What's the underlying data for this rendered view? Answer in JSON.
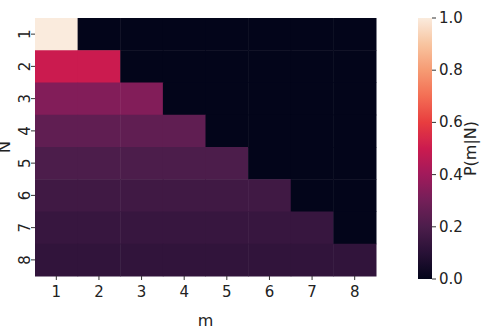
{
  "chart_data": {
    "type": "heatmap",
    "x_label": "m",
    "y_label": "N",
    "x_categories": [
      1,
      2,
      3,
      4,
      5,
      6,
      7,
      8
    ],
    "y_categories": [
      1,
      2,
      3,
      4,
      5,
      6,
      7,
      8
    ],
    "cells": [
      [
        1,
        0,
        0,
        0,
        0,
        0,
        0,
        0
      ],
      [
        0.5,
        0.5,
        0,
        0,
        0,
        0,
        0,
        0
      ],
      [
        0.333,
        0.333,
        0.333,
        0,
        0,
        0,
        0,
        0
      ],
      [
        0.25,
        0.25,
        0.25,
        0.25,
        0,
        0,
        0,
        0
      ],
      [
        0.2,
        0.2,
        0.2,
        0.2,
        0.2,
        0,
        0,
        0
      ],
      [
        0.167,
        0.167,
        0.167,
        0.167,
        0.167,
        0.167,
        0,
        0
      ],
      [
        0.143,
        0.143,
        0.143,
        0.143,
        0.143,
        0.143,
        0.143,
        0
      ],
      [
        0.125,
        0.125,
        0.125,
        0.125,
        0.125,
        0.125,
        0.125,
        0.125
      ]
    ],
    "colorbar": {
      "label": "P(m|N)",
      "range": [
        0,
        1
      ],
      "ticks": [
        {
          "value": 0,
          "label": "0.0"
        },
        {
          "value": 0.2,
          "label": "0.2"
        },
        {
          "value": 0.4,
          "label": "0.4"
        },
        {
          "value": 0.6,
          "label": "0.6"
        },
        {
          "value": 0.8,
          "label": "0.8"
        },
        {
          "value": 1,
          "label": "1.0"
        }
      ]
    }
  }
}
